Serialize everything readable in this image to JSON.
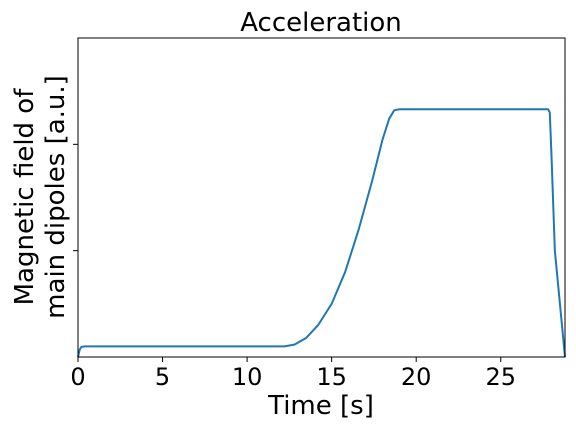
{
  "chart_data": {
    "type": "line",
    "title": "Acceleration",
    "xlabel": "Time [s]",
    "ylabel_lines": [
      "Magnetic field of",
      "main dipoles [a.u.]"
    ],
    "xlim": [
      0,
      28.8
    ],
    "ylim": [
      0,
      1.5
    ],
    "xticks": [
      0,
      5,
      10,
      15,
      20,
      25
    ],
    "xtick_labels": [
      "0",
      "5",
      "10",
      "15",
      "20",
      "25"
    ],
    "yticks": [
      0.5,
      1.0
    ],
    "grid": false,
    "series": [
      {
        "color": "#1f77b4",
        "x": [
          0,
          0.1,
          0.2,
          0.4,
          12.2,
          12.8,
          13.5,
          14.2,
          15.0,
          15.8,
          16.6,
          17.4,
          18.0,
          18.4,
          18.7,
          19.0,
          27.8,
          27.9,
          28.0,
          28.2,
          28.8
        ],
        "y": [
          0,
          0.035,
          0.047,
          0.05,
          0.05,
          0.058,
          0.09,
          0.15,
          0.25,
          0.4,
          0.6,
          0.83,
          1.02,
          1.12,
          1.16,
          1.165,
          1.165,
          1.15,
          0.95,
          0.5,
          0
        ]
      }
    ]
  }
}
